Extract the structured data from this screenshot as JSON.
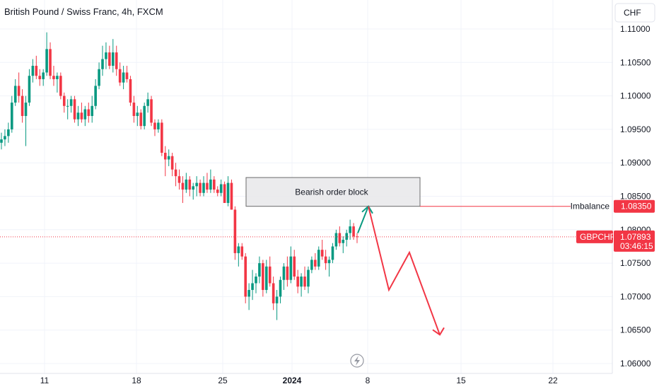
{
  "header": {
    "title": "British Pound / Swiss Franc, 4h, FXCM",
    "currency_button": "CHF"
  },
  "colors": {
    "up": "#089981",
    "down": "#f23645",
    "grid": "#f0f3fa",
    "box_fill": "#e8e8ea",
    "box_stroke": "#6b6b6b"
  },
  "chart_data": {
    "type": "candlestick",
    "symbol": "GBPCHF",
    "yaxis": {
      "ticks": [
        "1.06000",
        "1.06500",
        "1.07000",
        "1.07500",
        "1.08000",
        "1.08500",
        "1.09000",
        "1.09500",
        "1.10000",
        "1.10500",
        "1.11000"
      ],
      "ylim": [
        1.0595,
        1.1125
      ]
    },
    "xaxis": {
      "ticks": [
        {
          "label": "11",
          "bold": false
        },
        {
          "label": "18",
          "bold": false
        },
        {
          "label": "25",
          "bold": false
        },
        {
          "label": "2024",
          "bold": true
        },
        {
          "label": "8",
          "bold": false
        },
        {
          "label": "15",
          "bold": false
        },
        {
          "label": "22",
          "bold": false
        }
      ]
    },
    "candles": [
      [
        1.093,
        1.0945,
        1.092,
        1.0935
      ],
      [
        1.0935,
        1.095,
        1.0925,
        1.094
      ],
      [
        1.094,
        1.096,
        1.093,
        1.095
      ],
      [
        1.095,
        1.1,
        1.0945,
        1.099
      ],
      [
        1.099,
        1.1025,
        1.0985,
        1.1015
      ],
      [
        1.1015,
        1.1035,
        1.099,
        1.1
      ],
      [
        1.1,
        1.101,
        1.096,
        1.097
      ],
      [
        1.097,
        1.1,
        1.0925,
        1.099
      ],
      [
        1.099,
        1.104,
        1.0985,
        1.103
      ],
      [
        1.103,
        1.1055,
        1.102,
        1.1045
      ],
      [
        1.1045,
        1.106,
        1.1025,
        1.103
      ],
      [
        1.103,
        1.104,
        1.1015,
        1.1025
      ],
      [
        1.1025,
        1.104,
        1.1015,
        1.1035
      ],
      [
        1.1035,
        1.1095,
        1.103,
        1.107
      ],
      [
        1.107,
        1.108,
        1.1025,
        1.103
      ],
      [
        1.103,
        1.1045,
        1.1015,
        1.1025
      ],
      [
        1.1025,
        1.1035,
        1.1005,
        1.103
      ],
      [
        1.103,
        1.1035,
        1.0995,
        1.1
      ],
      [
        1.1,
        1.1005,
        1.0975,
        1.0985
      ],
      [
        1.0985,
        1.0995,
        1.0965,
        1.0985
      ],
      [
        1.0985,
        1.1,
        1.0975,
        1.0995
      ],
      [
        1.0995,
        1.1,
        1.096,
        1.0965
      ],
      [
        1.0965,
        1.0985,
        1.0955,
        1.0975
      ],
      [
        1.0975,
        1.099,
        1.096,
        1.0965
      ],
      [
        1.0965,
        1.0985,
        1.0955,
        1.098
      ],
      [
        1.098,
        1.099,
        1.096,
        1.097
      ],
      [
        1.097,
        1.1,
        1.096,
        1.0985
      ],
      [
        1.0985,
        1.1025,
        1.098,
        1.1015
      ],
      [
        1.1015,
        1.105,
        1.101,
        1.104
      ],
      [
        1.104,
        1.1075,
        1.103,
        1.1055
      ],
      [
        1.1055,
        1.108,
        1.104,
        1.1065
      ],
      [
        1.1065,
        1.1075,
        1.104,
        1.1045
      ],
      [
        1.1045,
        1.1085,
        1.1035,
        1.1065
      ],
      [
        1.1065,
        1.1075,
        1.103,
        1.104
      ],
      [
        1.104,
        1.105,
        1.1015,
        1.102
      ],
      [
        1.102,
        1.1045,
        1.101,
        1.1035
      ],
      [
        1.1035,
        1.1045,
        1.102,
        1.1025
      ],
      [
        1.1025,
        1.103,
        1.0985,
        1.099
      ],
      [
        1.099,
        1.1,
        1.096,
        1.097
      ],
      [
        1.097,
        1.0985,
        1.0955,
        1.0975
      ],
      [
        1.0975,
        1.098,
        1.095,
        1.0955
      ],
      [
        1.0955,
        1.099,
        1.095,
        1.0985
      ],
      [
        1.0985,
        1.1005,
        1.0975,
        1.0995
      ],
      [
        1.0995,
        1.1,
        1.0955,
        1.096
      ],
      [
        1.096,
        1.0965,
        1.094,
        1.095
      ],
      [
        1.095,
        1.0965,
        1.0945,
        1.096
      ],
      [
        1.096,
        1.0965,
        1.091,
        1.0915
      ],
      [
        1.0915,
        1.0925,
        1.088,
        1.0905
      ],
      [
        1.0905,
        1.092,
        1.0895,
        1.091
      ],
      [
        1.091,
        1.0915,
        1.088,
        1.089
      ],
      [
        1.089,
        1.09,
        1.0865,
        1.088
      ],
      [
        1.088,
        1.089,
        1.086,
        1.087
      ],
      [
        1.087,
        1.088,
        1.084,
        1.086
      ],
      [
        1.086,
        1.0885,
        1.0855,
        1.0875
      ],
      [
        1.0875,
        1.088,
        1.085,
        1.086
      ],
      [
        1.086,
        1.087,
        1.0845,
        1.0865
      ],
      [
        1.0865,
        1.088,
        1.085,
        1.087
      ],
      [
        1.087,
        1.0875,
        1.085,
        1.0855
      ],
      [
        1.0855,
        1.088,
        1.085,
        1.087
      ],
      [
        1.087,
        1.0885,
        1.0855,
        1.086
      ],
      [
        1.086,
        1.089,
        1.0855,
        1.0875
      ],
      [
        1.0875,
        1.088,
        1.0855,
        1.086
      ],
      [
        1.086,
        1.0865,
        1.085,
        1.0855
      ],
      [
        1.0855,
        1.0875,
        1.085,
        1.0868
      ],
      [
        1.0868,
        1.0872,
        1.084,
        1.084
      ],
      [
        1.084,
        1.088,
        1.0835,
        1.087
      ],
      [
        1.087,
        1.0875,
        1.083,
        1.083
      ],
      [
        1.083,
        1.0835,
        1.0755,
        1.0765
      ],
      [
        1.0765,
        1.078,
        1.0745,
        1.0775
      ],
      [
        1.0775,
        1.078,
        1.0755,
        1.076
      ],
      [
        1.076,
        1.0765,
        1.069,
        1.07
      ],
      [
        1.07,
        1.072,
        1.068,
        1.071
      ],
      [
        1.071,
        1.074,
        1.0695,
        1.072
      ],
      [
        1.072,
        1.0735,
        1.0705,
        1.073
      ],
      [
        1.073,
        1.076,
        1.072,
        1.075
      ],
      [
        1.075,
        1.0755,
        1.07,
        1.071
      ],
      [
        1.071,
        1.0755,
        1.0705,
        1.0745
      ],
      [
        1.0745,
        1.076,
        1.0715,
        1.072
      ],
      [
        1.072,
        1.073,
        1.068,
        1.069
      ],
      [
        1.069,
        1.071,
        1.0665,
        1.07
      ],
      [
        1.07,
        1.073,
        1.069,
        1.0725
      ],
      [
        1.0725,
        1.075,
        1.071,
        1.0745
      ],
      [
        1.0745,
        1.076,
        1.0715,
        1.0725
      ],
      [
        1.0725,
        1.0775,
        1.072,
        1.076
      ],
      [
        1.076,
        1.077,
        1.0725,
        1.073
      ],
      [
        1.073,
        1.074,
        1.0705,
        1.0715
      ],
      [
        1.0715,
        1.0735,
        1.07,
        1.073
      ],
      [
        1.073,
        1.0745,
        1.071,
        1.0715
      ],
      [
        1.0715,
        1.0745,
        1.0705,
        1.074
      ],
      [
        1.074,
        1.076,
        1.0735,
        1.0755
      ],
      [
        1.0755,
        1.0765,
        1.074,
        1.0745
      ],
      [
        1.0745,
        1.0775,
        1.074,
        1.077
      ],
      [
        1.077,
        1.0785,
        1.0755,
        1.076
      ],
      [
        1.076,
        1.077,
        1.074,
        1.075
      ],
      [
        1.075,
        1.076,
        1.073,
        1.0755
      ],
      [
        1.0755,
        1.078,
        1.075,
        1.0775
      ],
      [
        1.0775,
        1.08,
        1.077,
        1.0795
      ],
      [
        1.0795,
        1.0805,
        1.0775,
        1.078
      ],
      [
        1.078,
        1.079,
        1.0765,
        1.0785
      ],
      [
        1.0785,
        1.08,
        1.0775,
        1.0795
      ],
      [
        1.0795,
        1.0815,
        1.0785,
        1.0805
      ],
      [
        1.0805,
        1.081,
        1.0785,
        1.079
      ],
      [
        1.079,
        1.0795,
        1.078,
        1.0789
      ]
    ],
    "last_price": 1.07893,
    "annotations": {
      "order_block_label": "Bearish order block",
      "order_block_top": 1.0878,
      "order_block_bottom": 1.0835,
      "imbalance_label": "Imbalance",
      "imbalance_price": "1.08350",
      "imbalance_value": 1.0835,
      "symbol_tag": "GBPCHF",
      "price_tag": "1.07893",
      "countdown": "03:46:15"
    },
    "projection": {
      "green_arrow": [
        [
          1.0795,
          1.0835
        ]
      ],
      "red_path": [
        1.0835,
        1.071,
        1.0766,
        1.0643
      ]
    }
  }
}
